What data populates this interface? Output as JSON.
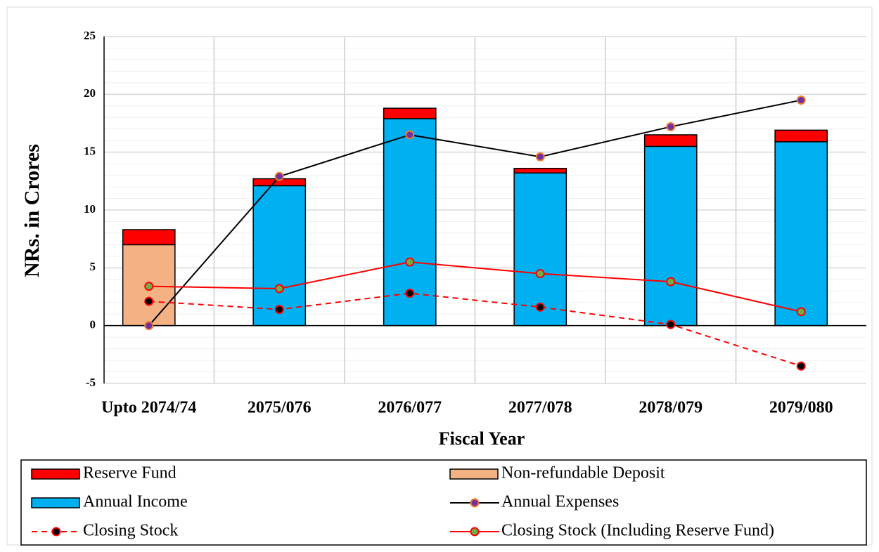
{
  "chart_data": {
    "type": "bar",
    "y_label": "NRs. in Crores",
    "x_label": "Fiscal Year",
    "categories": [
      "Upto 2074/74",
      "2075/076",
      "2076/077",
      "2077/078",
      "2078/079",
      "2079/080"
    ],
    "series": [
      {
        "name": "Reserve Fund",
        "type": "bar",
        "color": "#ff0000",
        "values": [
          1.3,
          0.6,
          0.9,
          0.4,
          1.0,
          1.0
        ]
      },
      {
        "name": "Non-refundable Deposit",
        "type": "bar",
        "color": "#f4b183",
        "values": [
          7,
          null,
          null,
          null,
          null,
          null
        ]
      },
      {
        "name": "Annual Income",
        "type": "bar",
        "color": "#00b0f0",
        "values": [
          null,
          12.1,
          17.9,
          13.2,
          15.5,
          15.9
        ]
      },
      {
        "name": "Annual Expenses",
        "type": "line",
        "color": "#000000",
        "marker_fill": "#7030a0",
        "marker_edge": "#ed7d31",
        "values": [
          0,
          12.9,
          16.5,
          14.6,
          17.2,
          19.5
        ]
      },
      {
        "name": "Closing Stock",
        "type": "line",
        "dashed": true,
        "color": "#ff0000",
        "marker_fill": "#000000",
        "marker_edge": "#ff0000",
        "values": [
          2.1,
          1.4,
          2.8,
          1.6,
          0.1,
          -3.5
        ]
      },
      {
        "name": "Closing Stock (Including Reserve Fund)",
        "type": "line",
        "color": "#ff0000",
        "marker_fill": "#70ad47",
        "marker_edge": "#ff0000",
        "values": [
          3.4,
          3.2,
          5.5,
          4.5,
          3.8,
          1.2
        ]
      }
    ],
    "ylim": [
      -5,
      25
    ],
    "yticks": [
      -5,
      0,
      5,
      10,
      15,
      20,
      25
    ],
    "grid": true,
    "legend": "bottom"
  }
}
